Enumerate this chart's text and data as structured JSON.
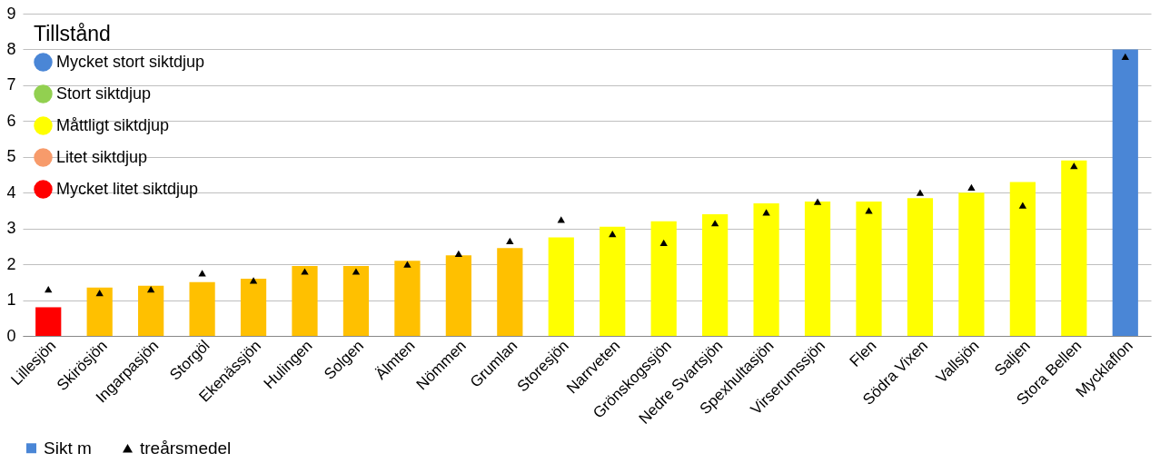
{
  "chart_data": {
    "type": "bar",
    "categories": [
      "Lillesjön",
      "Skirösjön",
      "Ingarpasjön",
      "Storgöl",
      "Ekenässjön",
      "Hulingen",
      "Solgen",
      "Älmten",
      "Nömmen",
      "Grumlan",
      "Storesjön",
      "Narrveten",
      "Grönskogssjön",
      "Nedre Svartsjön",
      "Spexhultasjön",
      "Virserumssjön",
      "Flen",
      "Södra Vixen",
      "Vallsjön",
      "Saljen",
      "Stora Bellen",
      "Mycklaflon"
    ],
    "series": [
      {
        "name": "Sikt m",
        "type": "bar",
        "color": "#4a86d6",
        "colors": [
          "#ff0000",
          "#ffc000",
          "#ffc000",
          "#ffc000",
          "#ffc000",
          "#ffc000",
          "#ffc000",
          "#ffc000",
          "#ffc000",
          "#ffc000",
          "#ffff00",
          "#ffff00",
          "#ffff00",
          "#ffff00",
          "#ffff00",
          "#ffff00",
          "#ffff00",
          "#ffff00",
          "#ffff00",
          "#ffff00",
          "#ffff00",
          "#4a86d6"
        ],
        "values": [
          0.8,
          1.35,
          1.4,
          1.5,
          1.6,
          1.95,
          1.95,
          2.1,
          2.25,
          2.45,
          2.75,
          3.05,
          3.2,
          3.4,
          3.7,
          3.75,
          3.75,
          3.85,
          4.0,
          4.3,
          4.9,
          8.0
        ]
      },
      {
        "name": "treårsmedel",
        "type": "scatter",
        "marker": "triangle",
        "color": "#000000",
        "values": [
          1.3,
          1.2,
          1.3,
          1.75,
          1.55,
          1.8,
          1.8,
          2.0,
          2.3,
          2.65,
          3.25,
          2.85,
          2.6,
          3.15,
          3.45,
          3.75,
          3.5,
          4.0,
          4.15,
          3.65,
          4.75,
          7.8
        ]
      },
      {
        "name": "Mycket stort siktdjup",
        "type": "scatter",
        "marker": "circle",
        "color": "#4a86d6",
        "values": [
          null,
          null,
          null,
          null,
          null,
          null,
          null,
          null,
          null,
          null,
          null,
          null,
          null,
          null,
          null,
          null,
          null,
          null,
          null,
          null,
          null,
          null
        ]
      },
      {
        "name": "Stort siktdjup",
        "type": "scatter",
        "marker": "circle",
        "color": "#92d050",
        "values": [
          null,
          null,
          null,
          null,
          null,
          null,
          null,
          null,
          null,
          null,
          null,
          null,
          null,
          null,
          null,
          null,
          null,
          null,
          null,
          null,
          null,
          null
        ]
      },
      {
        "name": "Måttligt siktdjup",
        "type": "scatter",
        "marker": "circle",
        "color": "#ffff00",
        "values": [
          null,
          null,
          null,
          null,
          null,
          null,
          null,
          null,
          null,
          null,
          null,
          null,
          null,
          null,
          null,
          null,
          null,
          null,
          null,
          null,
          null,
          null
        ]
      },
      {
        "name": "Litet siktdjup",
        "type": "scatter",
        "marker": "circle",
        "color": "#f79b6b",
        "values": [
          null,
          null,
          null,
          null,
          null,
          null,
          null,
          null,
          null,
          null,
          null,
          null,
          null,
          null,
          null,
          null,
          null,
          null,
          null,
          null,
          null,
          null
        ]
      },
      {
        "name": "Mycket litet siktdjup",
        "type": "scatter",
        "marker": "circle",
        "color": "#ff0000",
        "values": [
          null,
          null,
          null,
          null,
          null,
          null,
          null,
          null,
          null,
          null,
          null,
          null,
          null,
          null,
          null,
          null,
          null,
          null,
          null,
          null,
          null,
          null
        ]
      }
    ],
    "legend_title": "Tillstånd",
    "legend": "bottom",
    "ylim": [
      0,
      9
    ],
    "yticks": [
      0,
      1,
      2,
      3,
      4,
      5,
      6,
      7,
      8,
      9
    ],
    "grid": "y"
  }
}
